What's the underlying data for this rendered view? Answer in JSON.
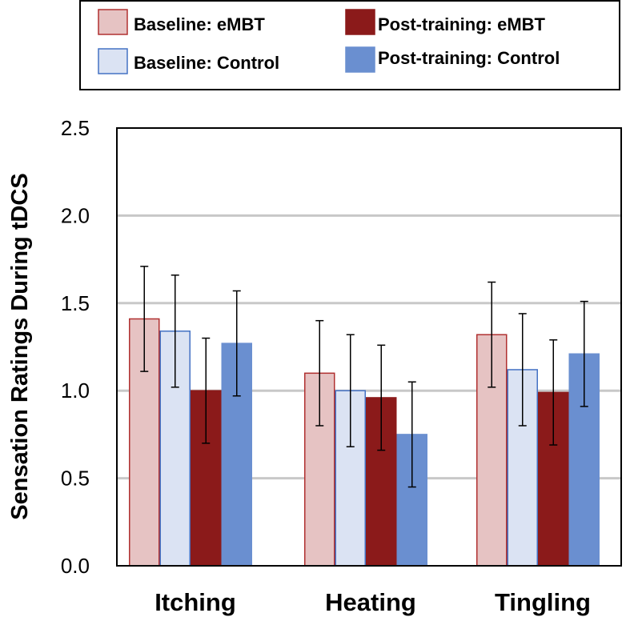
{
  "chart_data": {
    "type": "bar",
    "title": "",
    "xlabel": "",
    "ylabel": "Sensation Ratings During tDCS",
    "ylim": [
      0,
      2.5
    ],
    "yticks": [
      "0.0",
      "0.5",
      "1.0",
      "1.5",
      "2.0",
      "2.5"
    ],
    "grid": true,
    "legend_position": "top",
    "categories": [
      "Itching",
      "Heating",
      "Tingling"
    ],
    "series": [
      {
        "name": "Baseline: eMBT",
        "fill": "#e6c3c3",
        "stroke": "#b03030",
        "values": [
          1.41,
          1.1,
          1.32
        ],
        "errors": [
          0.3,
          0.3,
          0.3
        ]
      },
      {
        "name": "Baseline: Control",
        "fill": "#dbe3f3",
        "stroke": "#4472c4",
        "values": [
          1.34,
          1.0,
          1.12
        ],
        "errors": [
          0.32,
          0.32,
          0.32
        ]
      },
      {
        "name": "Post-training: eMBT",
        "fill": "#8b1a1a",
        "stroke": "#8b1a1a",
        "values": [
          1.0,
          0.96,
          0.99
        ],
        "errors": [
          0.3,
          0.3,
          0.3
        ]
      },
      {
        "name": "Post-training: Control",
        "fill": "#6a8fd0",
        "stroke": "#6a8fd0",
        "values": [
          1.27,
          0.75,
          1.21
        ],
        "errors": [
          0.3,
          0.3,
          0.3
        ]
      }
    ]
  }
}
